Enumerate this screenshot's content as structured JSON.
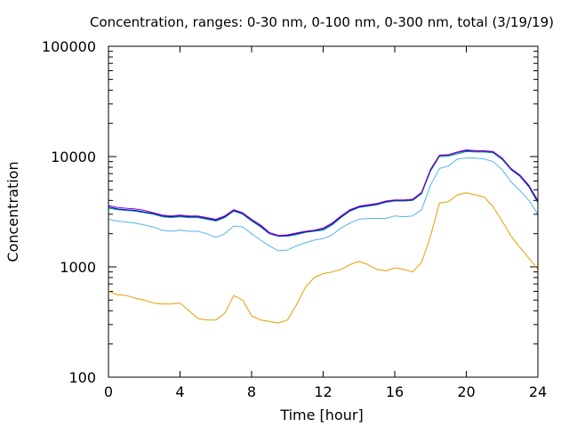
{
  "chart_data": {
    "type": "line",
    "title": "Concentration, ranges: 0-30 nm, 0-100 nm, 0-300 nm, total (3/19/19)",
    "xlabel": "Time [hour]",
    "ylabel": "Concentration",
    "xlim": [
      0,
      24
    ],
    "ylim": [
      100,
      100000
    ],
    "yscale": "log",
    "grid": false,
    "legend": "none",
    "x_ticks": [
      "0",
      "4",
      "8",
      "12",
      "16",
      "20",
      "24"
    ],
    "y_ticks": [
      "100",
      "1000",
      "10000",
      "100000"
    ],
    "x": [
      0,
      0.5,
      1,
      1.5,
      2,
      2.5,
      3,
      3.5,
      4,
      4.5,
      5,
      5.5,
      6,
      6.5,
      7,
      7.5,
      8,
      8.5,
      9,
      9.5,
      10,
      10.5,
      11,
      11.5,
      12,
      12.5,
      13,
      13.5,
      14,
      14.5,
      15,
      15.5,
      16,
      16.5,
      17,
      17.5,
      18,
      18.5,
      19,
      19.5,
      20,
      20.5,
      21,
      21.5,
      22,
      22.5,
      23,
      23.5,
      24
    ],
    "series": [
      {
        "color": "#e69f00",
        "values": [
          600,
          560,
          550,
          520,
          500,
          470,
          460,
          460,
          470,
          400,
          340,
          330,
          330,
          380,
          550,
          500,
          360,
          330,
          320,
          310,
          330,
          450,
          650,
          800,
          870,
          900,
          950,
          1050,
          1120,
          1050,
          950,
          920,
          980,
          950,
          900,
          1100,
          1900,
          3800,
          3900,
          4500,
          4700,
          4500,
          4300,
          3500,
          2600,
          1900,
          1500,
          1200,
          950
        ]
      },
      {
        "color": "#56b4e9",
        "values": [
          2700,
          2600,
          2550,
          2500,
          2400,
          2300,
          2150,
          2100,
          2150,
          2100,
          2100,
          2000,
          1850,
          2000,
          2350,
          2300,
          2000,
          1750,
          1550,
          1400,
          1420,
          1550,
          1650,
          1750,
          1800,
          1950,
          2250,
          2500,
          2700,
          2750,
          2750,
          2750,
          2900,
          2850,
          2900,
          3300,
          5500,
          7800,
          8200,
          9500,
          9700,
          9700,
          9500,
          9000,
          7600,
          5900,
          4900,
          4000,
          3000
        ]
      },
      {
        "color": "#009e73",
        "values": [
          3400,
          3300,
          3250,
          3200,
          3100,
          3000,
          2850,
          2800,
          2850,
          2800,
          2800,
          2700,
          2600,
          2800,
          3200,
          3000,
          2600,
          2300,
          2000,
          1900,
          1900,
          1950,
          2050,
          2100,
          2150,
          2400,
          2800,
          3200,
          3450,
          3550,
          3650,
          3850,
          3950,
          3950,
          4000,
          4600,
          7400,
          10000,
          10100,
          10600,
          11100,
          11000,
          11000,
          10800,
          9400,
          7600,
          6600,
          5300,
          3800
        ]
      },
      {
        "color": "#0000cc",
        "values": [
          3500,
          3350,
          3300,
          3250,
          3150,
          3050,
          2900,
          2850,
          2900,
          2850,
          2850,
          2750,
          2650,
          2850,
          3250,
          3050,
          2650,
          2350,
          2000,
          1900,
          1920,
          2000,
          2080,
          2130,
          2200,
          2450,
          2850,
          3250,
          3500,
          3600,
          3700,
          3900,
          4000,
          4000,
          4050,
          4700,
          7600,
          10200,
          10300,
          10900,
          11300,
          11200,
          11200,
          11000,
          9600,
          7700,
          6700,
          5400,
          3900
        ]
      },
      {
        "color": "#9400d3",
        "values": [
          3600,
          3450,
          3400,
          3350,
          3250,
          3100,
          2950,
          2900,
          2950,
          2900,
          2900,
          2800,
          2700,
          2900,
          3300,
          3100,
          2700,
          2400,
          2050,
          1930,
          1950,
          2030,
          2100,
          2150,
          2250,
          2500,
          2900,
          3300,
          3550,
          3650,
          3750,
          3950,
          4050,
          4050,
          4100,
          4750,
          7700,
          10300,
          10400,
          11000,
          11500,
          11300,
          11300,
          11100,
          9700,
          7800,
          6800,
          5500,
          4000
        ]
      }
    ]
  }
}
